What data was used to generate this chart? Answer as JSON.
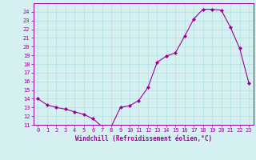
{
  "x": [
    0,
    1,
    2,
    3,
    4,
    5,
    6,
    7,
    8,
    9,
    10,
    11,
    12,
    13,
    14,
    15,
    16,
    17,
    18,
    19,
    20,
    21,
    22,
    23
  ],
  "y": [
    14,
    13.3,
    13,
    12.8,
    12.5,
    12.2,
    11.7,
    10.8,
    10.8,
    13,
    13.2,
    13.8,
    15.3,
    18.2,
    18.9,
    19.3,
    21.2,
    23.2,
    24.3,
    24.3,
    24.2,
    22.2,
    19.8,
    15.8
  ],
  "xlim": [
    -0.5,
    23.5
  ],
  "ylim": [
    11,
    25
  ],
  "yticks": [
    11,
    12,
    13,
    14,
    15,
    16,
    17,
    18,
    19,
    20,
    21,
    22,
    23,
    24
  ],
  "xticks": [
    0,
    1,
    2,
    3,
    4,
    5,
    6,
    7,
    8,
    9,
    10,
    11,
    12,
    13,
    14,
    15,
    16,
    17,
    18,
    19,
    20,
    21,
    22,
    23
  ],
  "xlabel": "Windchill (Refroidissement éolien,°C)",
  "line_color": "#990099",
  "marker": "D",
  "marker_size": 2,
  "bg_color": "#d4f0f0",
  "grid_color": "#aadddd",
  "xlabel_color": "#990099",
  "tick_color": "#990099",
  "spine_color": "#990099"
}
